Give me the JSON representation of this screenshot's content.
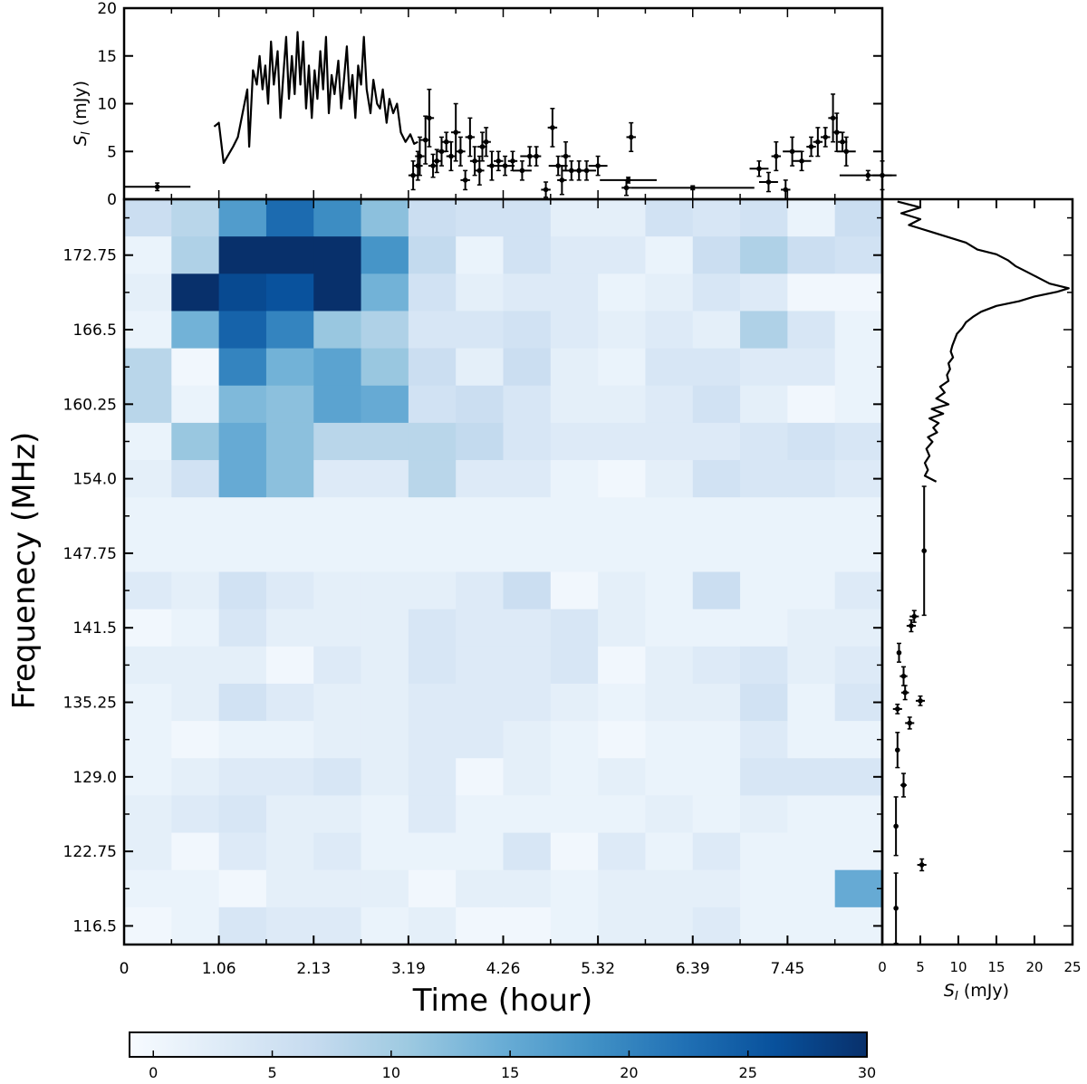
{
  "chart_data": {
    "type": "heatmap",
    "heatmap": {
      "xlabel": "Time (hour)",
      "ylabel": "Frequenecy (MHz)",
      "x_ticks": [
        "0",
        "1.06",
        "2.13",
        "3.19",
        "4.26",
        "5.32",
        "6.39",
        "7.45"
      ],
      "y_ticks": [
        "172.75",
        "166.5",
        "160.25",
        "154.0",
        "147.75",
        "141.5",
        "135.25",
        "129.0",
        "122.75",
        "116.5"
      ],
      "n_cols": 16,
      "n_rows": 20,
      "value_range": [
        -1,
        30
      ],
      "colormap": "Blues",
      "note": "rows listed top (highest frequency) to bottom (lowest frequency)",
      "values": [
        [
          6,
          8,
          17,
          23,
          19,
          12,
          6,
          5,
          5,
          2,
          2,
          5,
          4,
          5,
          1,
          6
        ],
        [
          1,
          9,
          30,
          30,
          30,
          18,
          7,
          1,
          5,
          3,
          3,
          1,
          6,
          9,
          6,
          5
        ],
        [
          2,
          30,
          27,
          26,
          30,
          14,
          5,
          2,
          3,
          3,
          1,
          2,
          4,
          3,
          0,
          0
        ],
        [
          1,
          14,
          24,
          20,
          11,
          9,
          4,
          4,
          5,
          3,
          2,
          3,
          2,
          9,
          4,
          1
        ],
        [
          8,
          0,
          20,
          14,
          16,
          11,
          6,
          2,
          6,
          2,
          1,
          4,
          4,
          3,
          3,
          1
        ],
        [
          8,
          1,
          13,
          12,
          16,
          15,
          5,
          6,
          4,
          2,
          2,
          3,
          5,
          2,
          0,
          1
        ],
        [
          1,
          11,
          15,
          12,
          8,
          8,
          8,
          7,
          4,
          3,
          3,
          3,
          3,
          4,
          5,
          4
        ],
        [
          2,
          5,
          15,
          12,
          3,
          3,
          8,
          3,
          3,
          1,
          0,
          2,
          5,
          4,
          4,
          3
        ],
        [
          1,
          1,
          1,
          1,
          1,
          1,
          1,
          1,
          1,
          1,
          1,
          1,
          1,
          1,
          1,
          1
        ],
        [
          1,
          1,
          1,
          1,
          1,
          1,
          1,
          1,
          1,
          1,
          1,
          1,
          1,
          1,
          1,
          1
        ],
        [
          3,
          2,
          5,
          3,
          2,
          2,
          2,
          3,
          6,
          0,
          2,
          1,
          6,
          1,
          1,
          3
        ],
        [
          0,
          1,
          4,
          2,
          2,
          2,
          4,
          3,
          3,
          4,
          2,
          1,
          1,
          1,
          2,
          2
        ],
        [
          2,
          2,
          2,
          0,
          3,
          2,
          4,
          3,
          3,
          4,
          0,
          2,
          3,
          4,
          2,
          3
        ],
        [
          1,
          2,
          5,
          3,
          2,
          2,
          3,
          3,
          3,
          2,
          1,
          2,
          2,
          5,
          1,
          4
        ],
        [
          1,
          0,
          1,
          1,
          2,
          2,
          3,
          3,
          2,
          1,
          0,
          1,
          1,
          3,
          1,
          1
        ],
        [
          1,
          2,
          3,
          3,
          4,
          2,
          3,
          0,
          2,
          1,
          2,
          1,
          1,
          4,
          4,
          4
        ],
        [
          2,
          3,
          4,
          2,
          2,
          1,
          3,
          1,
          1,
          1,
          1,
          2,
          1,
          2,
          1,
          1
        ],
        [
          2,
          0,
          3,
          2,
          3,
          1,
          1,
          1,
          4,
          0,
          3,
          1,
          3,
          1,
          1,
          1
        ],
        [
          1,
          1,
          0,
          2,
          2,
          2,
          0,
          2,
          2,
          1,
          2,
          2,
          2,
          1,
          1,
          15
        ],
        [
          0,
          1,
          4,
          3,
          3,
          1,
          2,
          0,
          0,
          1,
          2,
          2,
          3,
          1,
          1,
          1
        ]
      ]
    },
    "top_panel": {
      "ylabel": "S_I (mJy)",
      "ylim": [
        0,
        20
      ],
      "xlim": [
        0,
        8.0
      ],
      "y_ticks": [
        "0",
        "5",
        "10",
        "15",
        "20"
      ],
      "line": [
        [
          0.95,
          7.6
        ],
        [
          1.0,
          8.0
        ],
        [
          1.05,
          3.8
        ],
        [
          1.15,
          5.5
        ],
        [
          1.2,
          6.5
        ],
        [
          1.25,
          9.0
        ],
        [
          1.3,
          11.5
        ],
        [
          1.32,
          5.5
        ],
        [
          1.36,
          13.5
        ],
        [
          1.4,
          12.0
        ],
        [
          1.43,
          15.0
        ],
        [
          1.46,
          11.5
        ],
        [
          1.49,
          14.0
        ],
        [
          1.52,
          10.0
        ],
        [
          1.55,
          16.5
        ],
        [
          1.58,
          12.0
        ],
        [
          1.62,
          15.5
        ],
        [
          1.65,
          8.5
        ],
        [
          1.68,
          13.0
        ],
        [
          1.71,
          17.0
        ],
        [
          1.74,
          10.5
        ],
        [
          1.77,
          15.0
        ],
        [
          1.8,
          11.0
        ],
        [
          1.83,
          17.5
        ],
        [
          1.86,
          12.0
        ],
        [
          1.89,
          16.5
        ],
        [
          1.92,
          9.5
        ],
        [
          1.95,
          14.0
        ],
        [
          1.98,
          8.5
        ],
        [
          2.01,
          13.5
        ],
        [
          2.04,
          10.5
        ],
        [
          2.07,
          15.5
        ],
        [
          2.1,
          11.5
        ],
        [
          2.13,
          17.0
        ],
        [
          2.16,
          9.0
        ],
        [
          2.19,
          13.0
        ],
        [
          2.22,
          11.0
        ],
        [
          2.26,
          14.5
        ],
        [
          2.29,
          9.5
        ],
        [
          2.32,
          12.5
        ],
        [
          2.35,
          16.0
        ],
        [
          2.38,
          10.5
        ],
        [
          2.41,
          13.0
        ],
        [
          2.44,
          8.5
        ],
        [
          2.47,
          14.0
        ],
        [
          2.5,
          12.0
        ],
        [
          2.53,
          17.0
        ],
        [
          2.56,
          11.5
        ],
        [
          2.6,
          9.0
        ],
        [
          2.63,
          12.5
        ],
        [
          2.67,
          10.0
        ],
        [
          2.7,
          9.5
        ],
        [
          2.73,
          11.5
        ],
        [
          2.77,
          8.0
        ],
        [
          2.8,
          10.5
        ],
        [
          2.84,
          9.0
        ],
        [
          2.88,
          10.0
        ],
        [
          2.92,
          7.0
        ],
        [
          2.97,
          6.0
        ],
        [
          3.02,
          6.8
        ],
        [
          3.06,
          5.8
        ],
        [
          3.1,
          6.0
        ]
      ],
      "points": [
        [
          0.35,
          1.3,
          0.35,
          0.4
        ],
        [
          3.05,
          2.5,
          0.05,
          1.5
        ],
        [
          3.1,
          3.5,
          0.05,
          1.5
        ],
        [
          3.12,
          4.5,
          0.05,
          2.0
        ],
        [
          3.18,
          6.2,
          0.05,
          2.5
        ],
        [
          3.22,
          8.5,
          0.05,
          3.0
        ],
        [
          3.26,
          3.5,
          0.05,
          1.2
        ],
        [
          3.3,
          4.0,
          0.05,
          1.2
        ],
        [
          3.35,
          5.0,
          0.05,
          1.5
        ],
        [
          3.4,
          6.0,
          0.05,
          1.0
        ],
        [
          3.45,
          4.5,
          0.05,
          1.5
        ],
        [
          3.5,
          7.0,
          0.05,
          3.0
        ],
        [
          3.55,
          5.0,
          0.05,
          1.5
        ],
        [
          3.6,
          2.0,
          0.05,
          1.0
        ],
        [
          3.65,
          6.5,
          0.05,
          2.0
        ],
        [
          3.7,
          4.0,
          0.05,
          1.5
        ],
        [
          3.75,
          3.0,
          0.05,
          1.5
        ],
        [
          3.78,
          5.5,
          0.05,
          1.5
        ],
        [
          3.82,
          6.0,
          0.05,
          1.5
        ],
        [
          3.88,
          3.5,
          0.05,
          1.5
        ],
        [
          3.95,
          4.0,
          0.05,
          1.0
        ],
        [
          4.02,
          3.5,
          0.1,
          1.0
        ],
        [
          4.1,
          4.0,
          0.05,
          1.0
        ],
        [
          4.2,
          3.0,
          0.1,
          1.0
        ],
        [
          4.28,
          4.5,
          0.1,
          1.0
        ],
        [
          4.35,
          4.5,
          0.05,
          1.0
        ],
        [
          4.45,
          1.0,
          0.05,
          0.8
        ],
        [
          4.52,
          7.5,
          0.05,
          2.0
        ],
        [
          4.58,
          3.5,
          0.1,
          1.0
        ],
        [
          4.62,
          2.0,
          0.05,
          1.5
        ],
        [
          4.66,
          4.5,
          0.05,
          1.5
        ],
        [
          4.72,
          3.0,
          0.1,
          1.0
        ],
        [
          4.8,
          3.0,
          0.1,
          1.0
        ],
        [
          4.88,
          3.0,
          0.1,
          1.0
        ],
        [
          5.0,
          3.5,
          0.1,
          1.0
        ],
        [
          5.32,
          2.0,
          0.3,
          0.3
        ],
        [
          5.3,
          1.2,
          0.05,
          0.8
        ],
        [
          5.35,
          6.5,
          0.05,
          1.5
        ],
        [
          6.0,
          1.2,
          0.65,
          0.2
        ],
        [
          6.7,
          3.2,
          0.1,
          0.8
        ],
        [
          6.8,
          1.8,
          0.1,
          1.0
        ],
        [
          6.88,
          4.5,
          0.05,
          1.5
        ],
        [
          6.98,
          1.0,
          0.05,
          1.0
        ],
        [
          7.05,
          5.0,
          0.1,
          1.5
        ],
        [
          7.15,
          4.0,
          0.1,
          1.0
        ],
        [
          7.25,
          5.5,
          0.05,
          1.0
        ],
        [
          7.32,
          6.0,
          0.05,
          1.5
        ],
        [
          7.4,
          6.5,
          0.05,
          1.0
        ],
        [
          7.48,
          8.5,
          0.05,
          2.5
        ],
        [
          7.52,
          7.0,
          0.05,
          2.0
        ],
        [
          7.58,
          6.0,
          0.05,
          1.0
        ],
        [
          7.62,
          5.0,
          0.1,
          1.5
        ],
        [
          7.85,
          2.5,
          0.3,
          0.5
        ],
        [
          8.0,
          2.5,
          0.1,
          1.5
        ]
      ]
    },
    "right_panel": {
      "xlabel": "S_I (mJy)",
      "xlim": [
        0,
        25
      ],
      "x_ticks": [
        "0",
        "5",
        "10",
        "15",
        "20",
        "25"
      ],
      "ylim_mhz": [
        114.9,
        178.5
      ],
      "line": [
        [
          2,
          178.3
        ],
        [
          5,
          177.8
        ],
        [
          2.5,
          177.3
        ],
        [
          5,
          176.8
        ],
        [
          3.5,
          176.3
        ],
        [
          6,
          175.8
        ],
        [
          8.5,
          175.3
        ],
        [
          11,
          174.8
        ],
        [
          12.5,
          174.2
        ],
        [
          15,
          173.8
        ],
        [
          16.5,
          173.3
        ],
        [
          17.5,
          172.8
        ],
        [
          19,
          172.3
        ],
        [
          20.5,
          171.8
        ],
        [
          22,
          171.3
        ],
        [
          24.5,
          170.9
        ],
        [
          23,
          170.6
        ],
        [
          20,
          170.2
        ],
        [
          18,
          169.8
        ],
        [
          15,
          169.4
        ],
        [
          13,
          168.9
        ],
        [
          12,
          168.5
        ],
        [
          11,
          168.0
        ],
        [
          10.5,
          167.5
        ],
        [
          9.8,
          167.0
        ],
        [
          9.5,
          166.5
        ],
        [
          9.2,
          166.0
        ],
        [
          9.0,
          165.5
        ],
        [
          9.3,
          165.0
        ],
        [
          8.7,
          164.5
        ],
        [
          8.9,
          164.0
        ],
        [
          8.5,
          163.5
        ],
        [
          8.7,
          163.0
        ],
        [
          7.6,
          162.5
        ],
        [
          8.2,
          162.0
        ],
        [
          7.1,
          161.5
        ],
        [
          8.7,
          161.0
        ],
        [
          6.5,
          160.6
        ],
        [
          8.0,
          160.2
        ],
        [
          6.2,
          159.8
        ],
        [
          7.4,
          159.4
        ],
        [
          6.7,
          159.0
        ],
        [
          7.2,
          158.6
        ],
        [
          6.0,
          158.2
        ],
        [
          6.6,
          157.8
        ],
        [
          5.8,
          157.2
        ],
        [
          6.2,
          156.6
        ],
        [
          5.6,
          156.0
        ],
        [
          6.0,
          155.4
        ],
        [
          5.6,
          154.9
        ],
        [
          7.1,
          154.4
        ]
      ],
      "points": [
        [
          5.5,
          148.5,
          0.0,
          5.5
        ],
        [
          4.2,
          142.9,
          0.6,
          0.5
        ],
        [
          3.8,
          142.1,
          0.6,
          0.5
        ],
        [
          2.2,
          139.8,
          0.3,
          0.8
        ],
        [
          2.8,
          137.8,
          0.5,
          0.8
        ],
        [
          3.0,
          136.4,
          0.5,
          0.6
        ],
        [
          5.0,
          135.7,
          0.6,
          0.4
        ],
        [
          2.0,
          135.0,
          0.6,
          0.4
        ],
        [
          3.6,
          133.8,
          0.6,
          0.5
        ],
        [
          2.0,
          131.5,
          0.2,
          1.5
        ],
        [
          2.8,
          128.5,
          0.4,
          1.0
        ],
        [
          1.8,
          125.0,
          0.2,
          2.5
        ],
        [
          5.2,
          121.7,
          0.6,
          0.5
        ],
        [
          1.8,
          118.0,
          0.2,
          3.0
        ]
      ]
    },
    "colorbar": {
      "ticks": [
        "0",
        "5",
        "10",
        "15",
        "20",
        "25",
        "30"
      ],
      "range": [
        -1,
        30
      ]
    }
  }
}
